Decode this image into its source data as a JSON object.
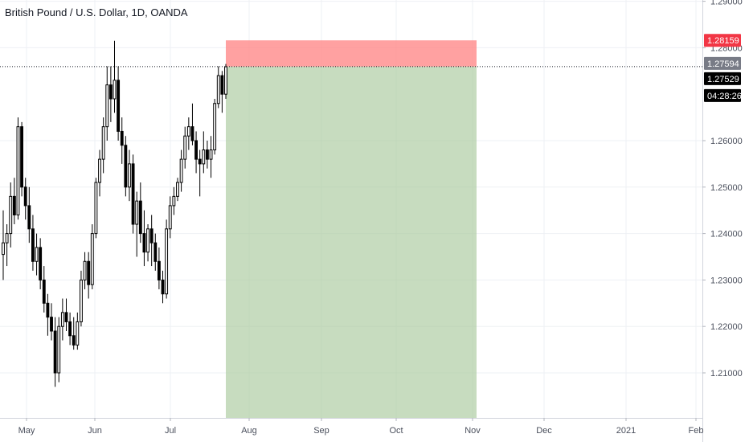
{
  "header": {
    "title": "British Pound / U.S. Dollar, 1D, OANDA"
  },
  "chart_data": {
    "type": "candlestick",
    "title": "British Pound / U.S. Dollar, 1D, OANDA",
    "ylim": [
      1.2038,
      1.2925
    ],
    "y_ticks": [
      "1.21000",
      "1.22000",
      "1.23000",
      "1.24000",
      "1.25000",
      "1.26000",
      "1.28000",
      "1.29000"
    ],
    "x_ticks": [
      "May",
      "Jun",
      "Jul",
      "Aug",
      "Sep",
      "Oct",
      "Nov",
      "Dec",
      "2021",
      "Feb"
    ],
    "grid": true,
    "last_price": "1.27594",
    "stop_price": "1.28159",
    "target_price": "1.27529",
    "countdown": "04:28:26",
    "colors": {
      "up": "#ffffff",
      "down": "#000000",
      "wick": "#000000",
      "stop_zone": "#ff8a8a",
      "target_zone": "#a9c99d",
      "stop_badge": "#f23645",
      "last_badge": "#787b86",
      "dark_badge": "#000000"
    },
    "candles": [
      [
        1.2355,
        1.245,
        1.23,
        1.238
      ],
      [
        1.238,
        1.242,
        1.233,
        1.24
      ],
      [
        1.24,
        1.251,
        1.237,
        1.248
      ],
      [
        1.248,
        1.252,
        1.242,
        1.244
      ],
      [
        1.244,
        1.265,
        1.243,
        1.263
      ],
      [
        1.263,
        1.264,
        1.248,
        1.25
      ],
      [
        1.25,
        1.252,
        1.243,
        1.246
      ],
      [
        1.246,
        1.25,
        1.238,
        1.241
      ],
      [
        1.241,
        1.244,
        1.232,
        1.234
      ],
      [
        1.234,
        1.24,
        1.231,
        1.237
      ],
      [
        1.237,
        1.239,
        1.228,
        1.23
      ],
      [
        1.23,
        1.233,
        1.223,
        1.225
      ],
      [
        1.225,
        1.227,
        1.218,
        1.222
      ],
      [
        1.222,
        1.225,
        1.217,
        1.219
      ],
      [
        1.219,
        1.222,
        1.207,
        1.21
      ],
      [
        1.21,
        1.222,
        1.208,
        1.22
      ],
      [
        1.22,
        1.226,
        1.217,
        1.223
      ],
      [
        1.223,
        1.226,
        1.219,
        1.221
      ],
      [
        1.221,
        1.223,
        1.216,
        1.218
      ],
      [
        1.218,
        1.222,
        1.215,
        1.216
      ],
      [
        1.216,
        1.223,
        1.215,
        1.221
      ],
      [
        1.221,
        1.232,
        1.22,
        1.23
      ],
      [
        1.23,
        1.236,
        1.228,
        1.234
      ],
      [
        1.234,
        1.236,
        1.226,
        1.229
      ],
      [
        1.229,
        1.242,
        1.228,
        1.24
      ],
      [
        1.24,
        1.252,
        1.239,
        1.251
      ],
      [
        1.251,
        1.258,
        1.248,
        1.256
      ],
      [
        1.256,
        1.265,
        1.253,
        1.263
      ],
      [
        1.263,
        1.276,
        1.26,
        1.272
      ],
      [
        1.272,
        1.276,
        1.264,
        1.269
      ],
      [
        1.269,
        1.2815,
        1.266,
        1.273
      ],
      [
        1.273,
        1.276,
        1.26,
        1.262
      ],
      [
        1.262,
        1.265,
        1.255,
        1.259
      ],
      [
        1.259,
        1.261,
        1.248,
        1.25
      ],
      [
        1.25,
        1.258,
        1.247,
        1.255
      ],
      [
        1.255,
        1.257,
        1.24,
        1.242
      ],
      [
        1.242,
        1.249,
        1.235,
        1.247
      ],
      [
        1.247,
        1.251,
        1.238,
        1.24
      ],
      [
        1.24,
        1.245,
        1.233,
        1.236
      ],
      [
        1.236,
        1.242,
        1.234,
        1.241
      ],
      [
        1.241,
        1.244,
        1.233,
        1.238
      ],
      [
        1.238,
        1.24,
        1.232,
        1.234
      ],
      [
        1.234,
        1.237,
        1.228,
        1.23
      ],
      [
        1.23,
        1.232,
        1.225,
        1.227
      ],
      [
        1.227,
        1.243,
        1.226,
        1.241
      ],
      [
        1.241,
        1.248,
        1.239,
        1.246
      ],
      [
        1.246,
        1.25,
        1.244,
        1.248
      ],
      [
        1.248,
        1.252,
        1.247,
        1.251
      ],
      [
        1.251,
        1.258,
        1.249,
        1.256
      ],
      [
        1.256,
        1.263,
        1.254,
        1.261
      ],
      [
        1.261,
        1.265,
        1.258,
        1.263
      ],
      [
        1.263,
        1.268,
        1.259,
        1.26
      ],
      [
        1.26,
        1.262,
        1.253,
        1.256
      ],
      [
        1.256,
        1.258,
        1.248,
        1.255
      ],
      [
        1.255,
        1.262,
        1.253,
        1.258
      ],
      [
        1.258,
        1.26,
        1.254,
        1.256
      ],
      [
        1.256,
        1.261,
        1.252,
        1.258
      ],
      [
        1.258,
        1.269,
        1.257,
        1.268
      ],
      [
        1.268,
        1.276,
        1.267,
        1.274
      ],
      [
        1.274,
        1.275,
        1.266,
        1.27
      ],
      [
        1.27,
        1.2765,
        1.269,
        1.2759
      ]
    ]
  }
}
